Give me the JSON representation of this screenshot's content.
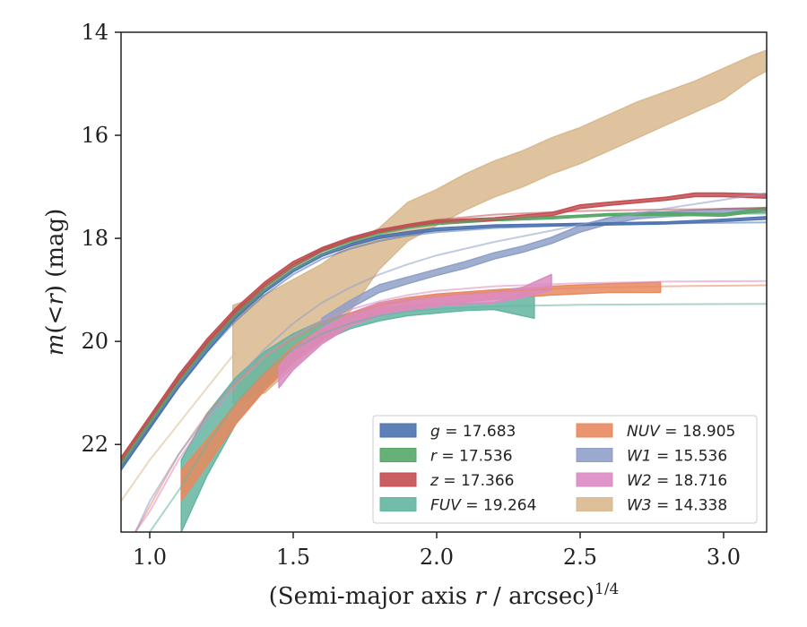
{
  "chart_data": {
    "type": "line",
    "title": "",
    "xlabel": "(Semi-major axis r / arcsec)^{1/4}",
    "ylabel": "m(<r) (mag)",
    "xlim": [
      0.9,
      3.15
    ],
    "ylim": [
      23.7,
      14.0
    ],
    "y_inverted": true,
    "x_ticks": [
      "1.0",
      "1.5",
      "2.0",
      "2.5",
      "3.0"
    ],
    "y_ticks": [
      "14",
      "16",
      "18",
      "20",
      "22"
    ],
    "legend_position": "lower-right",
    "legend_columns": 2,
    "series": [
      {
        "name": "g",
        "label": "g = 17.683",
        "color": "#4c72b0",
        "band": [
          [
            0.9,
            22.4,
            22.5
          ],
          [
            1.0,
            21.6,
            21.7
          ],
          [
            1.1,
            20.8,
            20.9
          ],
          [
            1.2,
            20.1,
            20.2
          ],
          [
            1.3,
            19.5,
            19.55
          ],
          [
            1.4,
            19.0,
            19.05
          ],
          [
            1.5,
            18.6,
            18.65
          ],
          [
            1.6,
            18.3,
            18.35
          ],
          [
            1.7,
            18.1,
            18.15
          ],
          [
            1.8,
            17.95,
            18.0
          ],
          [
            1.9,
            17.87,
            17.92
          ],
          [
            2.0,
            17.8,
            17.85
          ],
          [
            2.2,
            17.74,
            17.78
          ],
          [
            2.4,
            17.72,
            17.76
          ],
          [
            2.6,
            17.7,
            17.74
          ],
          [
            2.8,
            17.68,
            17.72
          ],
          [
            3.0,
            17.63,
            17.67
          ],
          [
            3.15,
            17.58,
            17.63
          ]
        ],
        "model": [
          [
            0.9,
            22.45
          ],
          [
            1.0,
            21.65
          ],
          [
            1.1,
            20.9
          ],
          [
            1.2,
            20.2
          ],
          [
            1.3,
            19.6
          ],
          [
            1.4,
            19.1
          ],
          [
            1.5,
            18.7
          ],
          [
            1.6,
            18.4
          ],
          [
            1.7,
            18.2
          ],
          [
            1.8,
            18.05
          ],
          [
            1.9,
            17.95
          ],
          [
            2.0,
            17.88
          ],
          [
            2.2,
            17.8
          ],
          [
            2.5,
            17.74
          ],
          [
            2.8,
            17.71
          ],
          [
            3.15,
            17.69
          ]
        ]
      },
      {
        "name": "r",
        "label": "r = 17.536",
        "color": "#55a868",
        "band": [
          [
            0.9,
            22.3,
            22.4
          ],
          [
            1.0,
            21.5,
            21.6
          ],
          [
            1.1,
            20.7,
            20.8
          ],
          [
            1.2,
            20.0,
            20.08
          ],
          [
            1.3,
            19.4,
            19.47
          ],
          [
            1.4,
            18.9,
            18.96
          ],
          [
            1.5,
            18.5,
            18.56
          ],
          [
            1.6,
            18.2,
            18.26
          ],
          [
            1.7,
            18.0,
            18.06
          ],
          [
            1.8,
            17.85,
            17.9
          ],
          [
            1.9,
            17.75,
            17.8
          ],
          [
            2.0,
            17.68,
            17.73
          ],
          [
            2.2,
            17.62,
            17.66
          ],
          [
            2.4,
            17.58,
            17.62
          ],
          [
            2.6,
            17.52,
            17.56
          ],
          [
            2.8,
            17.5,
            17.55
          ],
          [
            3.0,
            17.52,
            17.57
          ],
          [
            3.15,
            17.4,
            17.46
          ]
        ],
        "model": [
          [
            0.9,
            22.35
          ],
          [
            1.0,
            21.55
          ],
          [
            1.1,
            20.8
          ],
          [
            1.2,
            20.1
          ],
          [
            1.3,
            19.5
          ],
          [
            1.4,
            19.0
          ],
          [
            1.5,
            18.6
          ],
          [
            1.6,
            18.3
          ],
          [
            1.7,
            18.08
          ],
          [
            1.8,
            17.92
          ],
          [
            1.9,
            17.8
          ],
          [
            2.0,
            17.72
          ],
          [
            2.2,
            17.62
          ],
          [
            2.5,
            17.56
          ],
          [
            2.8,
            17.53
          ],
          [
            3.15,
            17.52
          ]
        ]
      },
      {
        "name": "z",
        "label": "z = 17.366",
        "color": "#c44e52",
        "band": [
          [
            0.9,
            22.25,
            22.35
          ],
          [
            1.0,
            21.45,
            21.55
          ],
          [
            1.1,
            20.65,
            20.75
          ],
          [
            1.2,
            19.95,
            20.03
          ],
          [
            1.3,
            19.35,
            19.42
          ],
          [
            1.4,
            18.85,
            18.91
          ],
          [
            1.5,
            18.45,
            18.51
          ],
          [
            1.6,
            18.18,
            18.24
          ],
          [
            1.7,
            17.98,
            18.04
          ],
          [
            1.8,
            17.83,
            17.88
          ],
          [
            1.9,
            17.73,
            17.78
          ],
          [
            2.0,
            17.65,
            17.7
          ],
          [
            2.2,
            17.6,
            17.65
          ],
          [
            2.4,
            17.5,
            17.56
          ],
          [
            2.5,
            17.35,
            17.42
          ],
          [
            2.6,
            17.3,
            17.36
          ],
          [
            2.7,
            17.25,
            17.31
          ],
          [
            2.8,
            17.2,
            17.26
          ],
          [
            2.9,
            17.12,
            17.19
          ],
          [
            3.0,
            17.12,
            17.19
          ],
          [
            3.15,
            17.14,
            17.22
          ]
        ],
        "model": [
          [
            0.9,
            22.3
          ],
          [
            1.0,
            21.5
          ],
          [
            1.1,
            20.75
          ],
          [
            1.2,
            20.05
          ],
          [
            1.3,
            19.45
          ],
          [
            1.4,
            18.95
          ],
          [
            1.5,
            18.55
          ],
          [
            1.6,
            18.25
          ],
          [
            1.7,
            18.02
          ],
          [
            1.8,
            17.85
          ],
          [
            1.9,
            17.73
          ],
          [
            2.0,
            17.64
          ],
          [
            2.2,
            17.54
          ],
          [
            2.5,
            17.47
          ],
          [
            2.8,
            17.44
          ],
          [
            3.15,
            17.42
          ]
        ]
      },
      {
        "name": "FUV",
        "label": "FUV = 19.264",
        "color": "#64b5a0",
        "band": [
          [
            1.11,
            22.3,
            23.7
          ],
          [
            1.2,
            21.4,
            22.6
          ],
          [
            1.3,
            20.7,
            21.6
          ],
          [
            1.4,
            20.2,
            20.9
          ],
          [
            1.5,
            19.85,
            20.4
          ],
          [
            1.6,
            19.6,
            20.0
          ],
          [
            1.7,
            19.45,
            19.75
          ],
          [
            1.8,
            19.35,
            19.6
          ],
          [
            1.9,
            19.3,
            19.5
          ],
          [
            2.0,
            19.28,
            19.45
          ],
          [
            2.1,
            19.26,
            19.4
          ],
          [
            2.2,
            19.25,
            19.38
          ],
          [
            2.34,
            19.0,
            19.55
          ]
        ],
        "model": [
          [
            1.0,
            23.7
          ],
          [
            1.1,
            22.9
          ],
          [
            1.2,
            22.0
          ],
          [
            1.3,
            21.2
          ],
          [
            1.4,
            20.6
          ],
          [
            1.5,
            20.15
          ],
          [
            1.6,
            19.85
          ],
          [
            1.7,
            19.65
          ],
          [
            1.8,
            19.5
          ],
          [
            1.9,
            19.42
          ],
          [
            2.0,
            19.37
          ],
          [
            2.2,
            19.32
          ],
          [
            2.5,
            19.29
          ],
          [
            2.8,
            19.28
          ],
          [
            3.15,
            19.27
          ]
        ]
      },
      {
        "name": "NUV",
        "label": "NUV = 18.905",
        "color": "#e8895f",
        "band": [
          [
            1.11,
            22.5,
            23.1
          ],
          [
            1.2,
            21.9,
            22.4
          ],
          [
            1.3,
            21.2,
            21.6
          ],
          [
            1.4,
            20.6,
            20.95
          ],
          [
            1.5,
            20.1,
            20.4
          ],
          [
            1.6,
            19.75,
            20.0
          ],
          [
            1.7,
            19.45,
            19.65
          ],
          [
            1.8,
            19.25,
            19.45
          ],
          [
            1.9,
            19.15,
            19.35
          ],
          [
            2.0,
            19.08,
            19.28
          ],
          [
            2.2,
            19.0,
            19.18
          ],
          [
            2.4,
            18.93,
            19.1
          ],
          [
            2.6,
            18.88,
            19.05
          ],
          [
            2.78,
            18.85,
            19.05
          ]
        ],
        "model": [
          [
            0.95,
            23.7
          ],
          [
            1.0,
            23.2
          ],
          [
            1.1,
            22.2
          ],
          [
            1.2,
            21.4
          ],
          [
            1.3,
            20.8
          ],
          [
            1.4,
            20.3
          ],
          [
            1.5,
            19.95
          ],
          [
            1.6,
            19.65
          ],
          [
            1.7,
            19.45
          ],
          [
            1.8,
            19.3
          ],
          [
            1.9,
            19.2
          ],
          [
            2.0,
            19.12
          ],
          [
            2.2,
            19.03
          ],
          [
            2.5,
            18.96
          ],
          [
            2.8,
            18.93
          ],
          [
            3.15,
            18.91
          ]
        ]
      },
      {
        "name": "W1",
        "label": "W1 = 15.536",
        "color": "#8fa0c8",
        "band": [
          [
            1.6,
            19.55,
            19.7
          ],
          [
            1.7,
            19.2,
            19.35
          ],
          [
            1.8,
            18.9,
            19.05
          ],
          [
            1.9,
            18.75,
            18.88
          ],
          [
            2.0,
            18.6,
            18.72
          ],
          [
            2.1,
            18.45,
            18.58
          ],
          [
            2.2,
            18.28,
            18.4
          ],
          [
            2.3,
            18.15,
            18.27
          ],
          [
            2.4,
            17.98,
            18.1
          ],
          [
            2.5,
            17.75,
            17.88
          ],
          [
            2.6,
            17.6,
            17.72
          ],
          [
            2.7,
            17.5,
            17.62
          ],
          [
            2.8,
            17.48,
            17.58
          ],
          [
            2.9,
            17.45,
            17.55
          ],
          [
            3.0,
            17.42,
            17.52
          ],
          [
            3.15,
            17.4,
            17.5
          ]
        ],
        "model": [
          [
            0.95,
            23.7
          ],
          [
            1.0,
            23.1
          ],
          [
            1.1,
            22.2
          ],
          [
            1.2,
            21.45
          ],
          [
            1.3,
            20.75
          ],
          [
            1.4,
            20.15
          ],
          [
            1.5,
            19.65
          ],
          [
            1.6,
            19.25
          ],
          [
            1.7,
            18.95
          ],
          [
            1.8,
            18.7
          ],
          [
            1.9,
            18.5
          ],
          [
            2.0,
            18.33
          ],
          [
            2.2,
            18.07
          ],
          [
            2.4,
            17.85
          ],
          [
            2.6,
            17.62
          ],
          [
            2.8,
            17.42
          ],
          [
            3.0,
            17.25
          ],
          [
            3.15,
            17.12
          ]
        ]
      },
      {
        "name": "W2",
        "label": "W2 = 18.716",
        "color": "#da8bc3",
        "band": [
          [
            1.45,
            20.5,
            20.9
          ],
          [
            1.5,
            20.15,
            20.55
          ],
          [
            1.6,
            19.75,
            20.05
          ],
          [
            1.7,
            19.45,
            19.7
          ],
          [
            1.8,
            19.25,
            19.5
          ],
          [
            1.9,
            19.18,
            19.4
          ],
          [
            2.0,
            19.12,
            19.32
          ],
          [
            2.1,
            19.08,
            19.28
          ],
          [
            2.2,
            19.05,
            19.25
          ],
          [
            2.3,
            18.95,
            19.15
          ],
          [
            2.4,
            18.7,
            19.0
          ]
        ],
        "model": [
          [
            0.95,
            23.7
          ],
          [
            1.0,
            23.3
          ],
          [
            1.1,
            22.3
          ],
          [
            1.2,
            21.5
          ],
          [
            1.3,
            20.85
          ],
          [
            1.4,
            20.3
          ],
          [
            1.5,
            19.9
          ],
          [
            1.6,
            19.6
          ],
          [
            1.7,
            19.38
          ],
          [
            1.8,
            19.22
          ],
          [
            1.9,
            19.1
          ],
          [
            2.0,
            19.02
          ],
          [
            2.2,
            18.93
          ],
          [
            2.5,
            18.87
          ],
          [
            2.8,
            18.84
          ],
          [
            3.15,
            18.83
          ]
        ]
      },
      {
        "name": "W3",
        "label": "W3 = 14.338",
        "color": "#d9b98e",
        "band": [
          [
            1.29,
            19.3,
            21.2
          ],
          [
            1.4,
            19.1,
            21.0
          ],
          [
            1.5,
            18.8,
            20.5
          ],
          [
            1.6,
            18.5,
            20.0
          ],
          [
            1.7,
            18.1,
            19.4
          ],
          [
            1.8,
            17.8,
            18.6
          ],
          [
            1.9,
            17.3,
            18.05
          ],
          [
            2.0,
            17.05,
            17.75
          ],
          [
            2.1,
            16.75,
            17.45
          ],
          [
            2.2,
            16.5,
            17.2
          ],
          [
            2.3,
            16.3,
            17.0
          ],
          [
            2.4,
            16.05,
            16.75
          ],
          [
            2.5,
            15.85,
            16.55
          ],
          [
            2.6,
            15.6,
            16.3
          ],
          [
            2.7,
            15.35,
            16.05
          ],
          [
            2.8,
            15.15,
            15.8
          ],
          [
            2.9,
            14.95,
            15.55
          ],
          [
            3.0,
            14.7,
            15.3
          ],
          [
            3.1,
            14.45,
            14.9
          ],
          [
            3.15,
            14.35,
            14.75
          ]
        ],
        "model": [
          [
            0.9,
            23.1
          ],
          [
            1.0,
            22.3
          ],
          [
            1.1,
            21.6
          ],
          [
            1.2,
            20.9
          ],
          [
            1.3,
            20.2
          ]
        ]
      }
    ]
  }
}
